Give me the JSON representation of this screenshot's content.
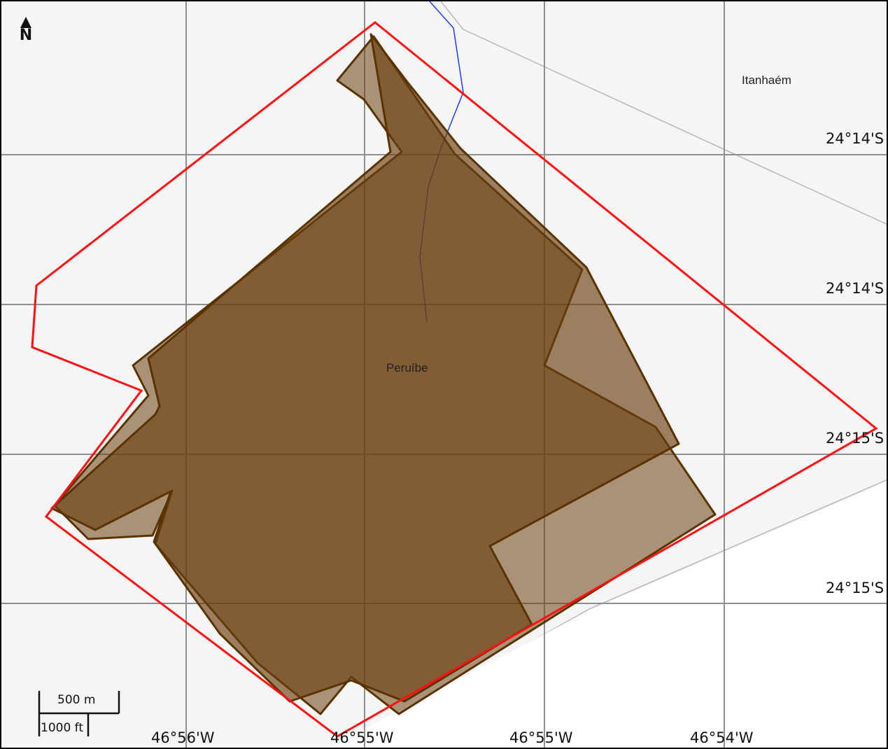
{
  "map": {
    "north_label": "N",
    "places": {
      "peruibe": "Peruíbe",
      "itanhaem": "Itanhaém"
    },
    "lat_labels": [
      "24°14'S",
      "24°14'S",
      "24°15'S",
      "24°15'S"
    ],
    "lon_labels": [
      "46°56'W",
      "46°55'W",
      "46°55'W",
      "46°54'W"
    ],
    "scale": {
      "metric": "500 m",
      "imperial": "1000 ft"
    },
    "colors": {
      "background": "#f5f5f5",
      "grid": "#8c8c8c",
      "boundary": "#ff0000",
      "polygon_fill": "#6b3f10",
      "polygon_stroke": "#5a3300",
      "river": "#1a3cff",
      "road": "#b4b4b4"
    }
  }
}
